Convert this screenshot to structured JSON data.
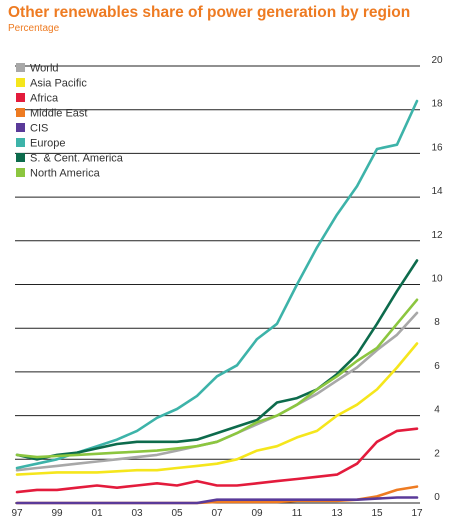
{
  "chart_data": {
    "type": "line",
    "title": "Other renewables share of power generation by region",
    "subtitle": "Percentage",
    "xlabel": "",
    "ylabel": "",
    "x": [
      1997,
      1998,
      1999,
      2000,
      2001,
      2002,
      2003,
      2004,
      2005,
      2006,
      2007,
      2008,
      2009,
      2010,
      2011,
      2012,
      2013,
      2014,
      2015,
      2016,
      2017
    ],
    "x_tick_labels": [
      "97",
      "99",
      "01",
      "03",
      "05",
      "07",
      "09",
      "11",
      "13",
      "15",
      "17"
    ],
    "x_tick_values": [
      1997,
      1999,
      2001,
      2003,
      2005,
      2007,
      2009,
      2011,
      2013,
      2015,
      2017
    ],
    "y_ticks": [
      0,
      2,
      4,
      6,
      8,
      10,
      12,
      14,
      16,
      18,
      20
    ],
    "ylim": [
      0,
      20
    ],
    "xlim": [
      1996.9,
      2018.3
    ],
    "grid": "horizontal",
    "y_axis_position": "right",
    "legend_position": "top-left",
    "series": [
      {
        "name": "World",
        "color": "#a8a8a8",
        "values": [
          1.5,
          1.6,
          1.7,
          1.8,
          1.9,
          2.0,
          2.1,
          2.2,
          2.4,
          2.6,
          2.8,
          3.2,
          3.6,
          4.0,
          4.5,
          5.0,
          5.6,
          6.2,
          7.0,
          7.7,
          8.7
        ]
      },
      {
        "name": "Asia Pacific",
        "color": "#f5e61c",
        "values": [
          1.3,
          1.35,
          1.4,
          1.4,
          1.4,
          1.45,
          1.5,
          1.5,
          1.6,
          1.7,
          1.8,
          2.0,
          2.4,
          2.6,
          3.0,
          3.3,
          4.0,
          4.5,
          5.2,
          6.2,
          7.3
        ]
      },
      {
        "name": "Africa",
        "color": "#e31b3c",
        "values": [
          0.5,
          0.6,
          0.6,
          0.7,
          0.8,
          0.7,
          0.8,
          0.9,
          0.8,
          1.0,
          0.8,
          0.8,
          0.9,
          1.0,
          1.1,
          1.2,
          1.3,
          1.8,
          2.8,
          3.3,
          3.4
        ]
      },
      {
        "name": "Middle East",
        "color": "#ee7b22",
        "values": [
          0.0,
          0.0,
          0.0,
          0.0,
          0.0,
          0.0,
          0.0,
          0.0,
          0.0,
          0.0,
          0.05,
          0.05,
          0.05,
          0.05,
          0.1,
          0.1,
          0.1,
          0.15,
          0.3,
          0.6,
          0.75
        ]
      },
      {
        "name": "CIS",
        "color": "#5a3a99",
        "values": [
          0.0,
          0.0,
          0.0,
          0.0,
          0.0,
          0.0,
          0.0,
          0.0,
          0.0,
          0.0,
          0.15,
          0.15,
          0.15,
          0.15,
          0.15,
          0.15,
          0.15,
          0.15,
          0.2,
          0.25,
          0.25
        ]
      },
      {
        "name": "Europe",
        "color": "#3db3a9",
        "values": [
          1.6,
          1.8,
          2.0,
          2.3,
          2.6,
          2.9,
          3.3,
          3.9,
          4.3,
          4.9,
          5.8,
          6.3,
          7.5,
          8.2,
          10.0,
          11.7,
          13.2,
          14.5,
          16.2,
          16.4,
          18.4
        ]
      },
      {
        "name": "S. & Cent. America",
        "color": "#0d6b4c",
        "values": [
          2.2,
          2.0,
          2.2,
          2.3,
          2.5,
          2.7,
          2.8,
          2.8,
          2.8,
          2.9,
          3.2,
          3.5,
          3.8,
          4.6,
          4.8,
          5.2,
          5.9,
          6.8,
          8.2,
          9.7,
          11.1
        ]
      },
      {
        "name": "North America",
        "color": "#8cc63f",
        "values": [
          2.2,
          2.1,
          2.15,
          2.2,
          2.25,
          2.3,
          2.35,
          2.4,
          2.5,
          2.6,
          2.8,
          3.2,
          3.7,
          4.0,
          4.5,
          5.2,
          5.8,
          6.5,
          7.1,
          8.2,
          9.3
        ]
      }
    ]
  }
}
